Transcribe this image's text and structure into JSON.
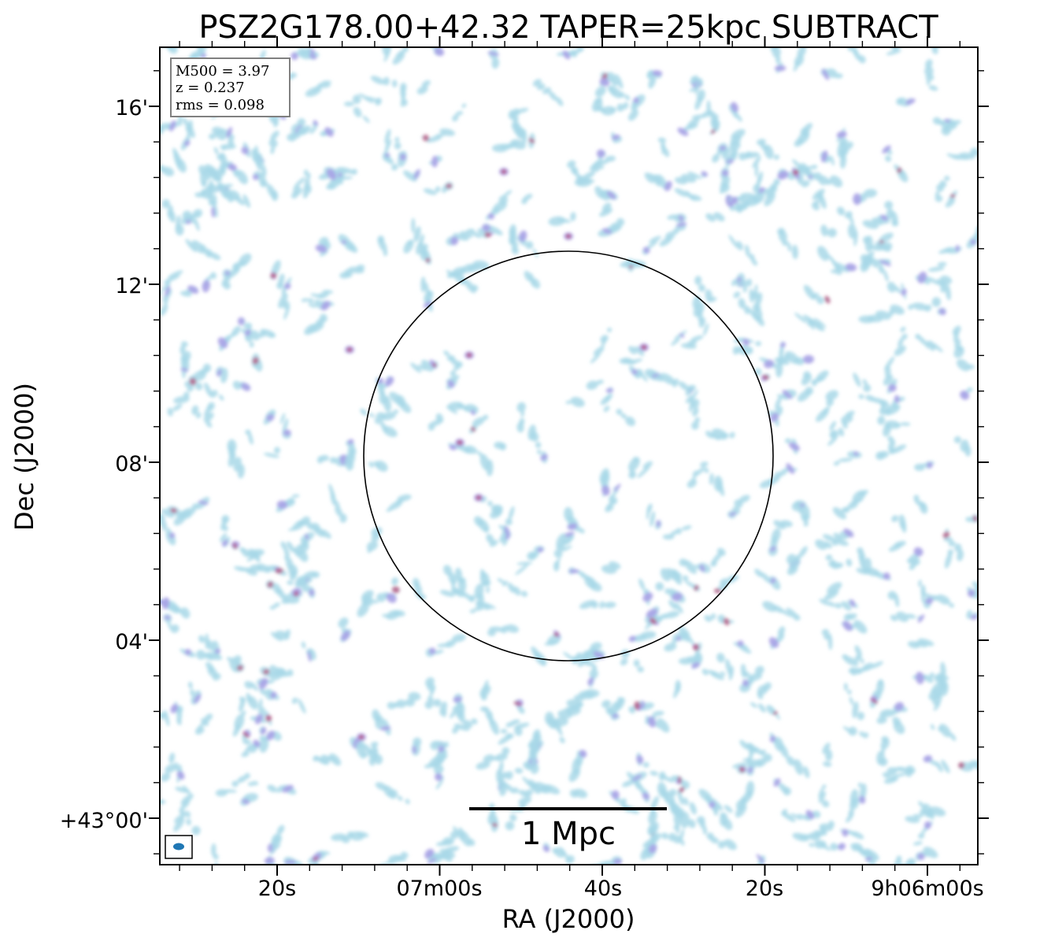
{
  "figure": {
    "title": "PSZ2G178.00+42.32 TAPER=25kpc SUBTRACT",
    "xlabel": "RA (J2000)",
    "ylabel": "Dec (J2000)",
    "x_tick_labels": [
      "20s",
      "07m00s",
      "40s",
      "20s",
      "9h06m00s"
    ],
    "y_tick_labels": [
      "16'",
      "12'",
      "08'",
      "04'",
      "+43°00'"
    ],
    "info_lines": [
      "M500 = 3.97",
      "z = 0.237",
      "rms = 0.098"
    ],
    "scale_bar_label": "1 Mpc",
    "colors": {
      "low": "#a8d8e8",
      "mid": "#a9a2e6",
      "high": "#b8507a",
      "circle": "#000000",
      "beam": "#1f77b4"
    },
    "noise_seed": 42
  }
}
